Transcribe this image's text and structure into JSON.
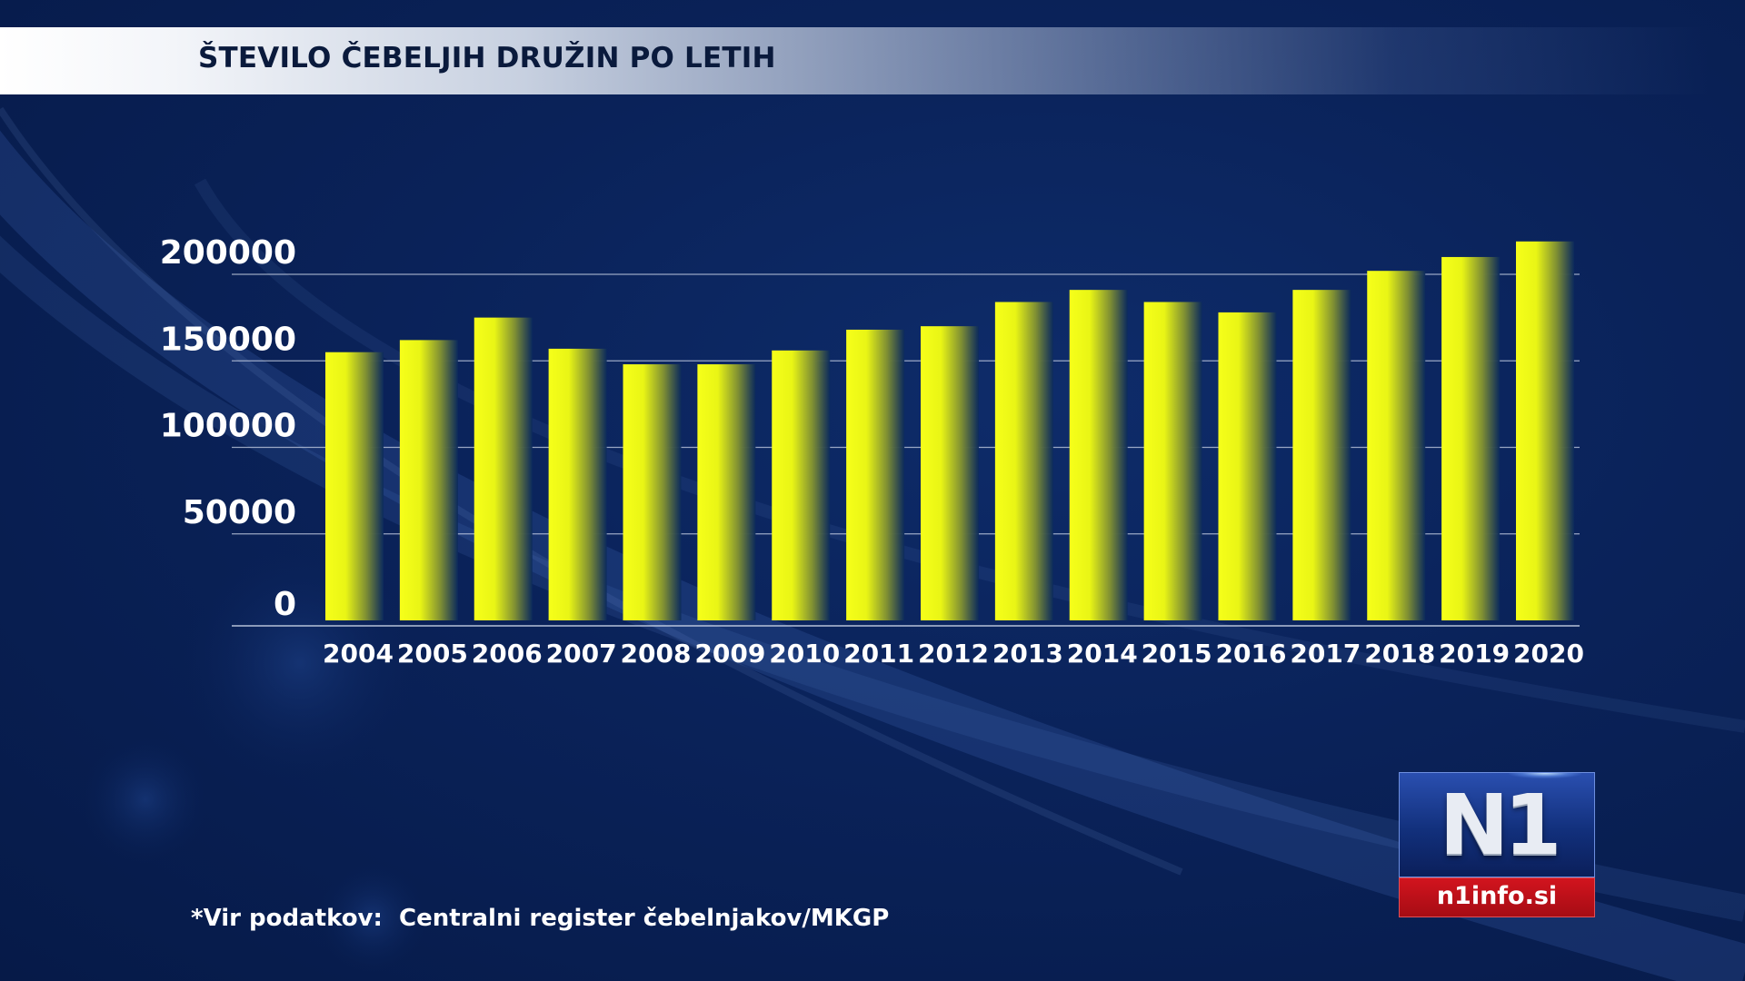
{
  "header": {
    "title": "ŠTEVILO ČEBELJIH DRUŽIN PO LETIH"
  },
  "source_note": "*Vir podatkov:  Centralni register čebelnjakov/MKGP",
  "logo": {
    "mark": "N1",
    "url": "n1info.si"
  },
  "colors": {
    "background": "#0a2259",
    "bar_bright": "#f4ff1e",
    "bar_dark": "#0b2a5c",
    "gridline": "#c9d3e6",
    "text": "#ffffff",
    "logo_red": "#c8101a"
  },
  "chart_data": {
    "type": "bar",
    "title": "ŠTEVILO ČEBELJIH DRUŽIN PO LETIH",
    "xlabel": "",
    "ylabel": "",
    "categories": [
      "2004",
      "2005",
      "2006",
      "2007",
      "2008",
      "2009",
      "2010",
      "2011",
      "2012",
      "2013",
      "2014",
      "2015",
      "2016",
      "2017",
      "2018",
      "2019",
      "2020"
    ],
    "values": [
      155000,
      162000,
      175000,
      157000,
      148000,
      148000,
      156000,
      168000,
      170000,
      184000,
      191000,
      184000,
      178000,
      191000,
      202000,
      210000,
      219000
    ],
    "y_ticks": [
      0,
      50000,
      100000,
      150000,
      200000
    ],
    "ylim": [
      0,
      200000
    ],
    "grid": true,
    "legend": "none"
  }
}
